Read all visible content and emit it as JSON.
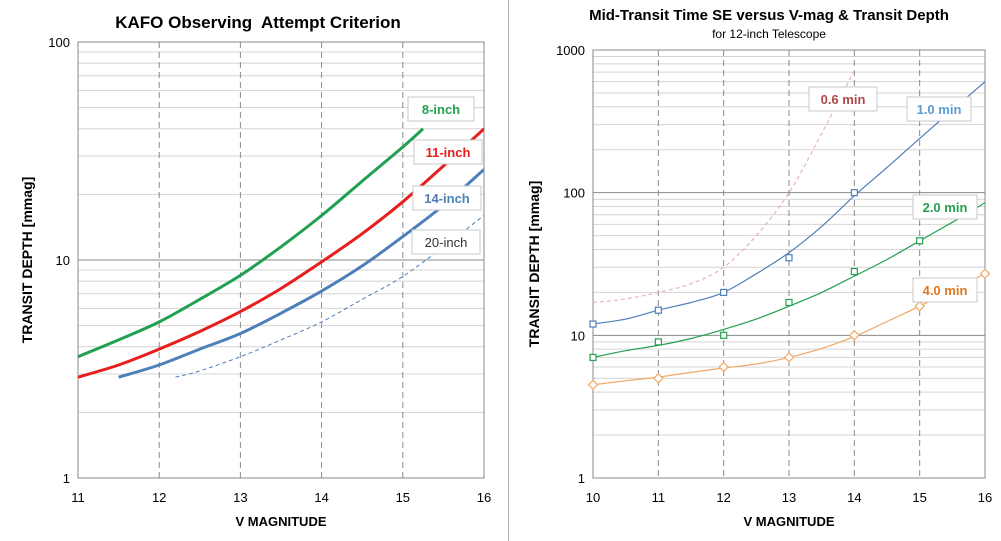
{
  "chart_data": [
    {
      "type": "line",
      "title": "KAFO Observing  Attempt Criterion",
      "subtitle": "",
      "xlabel": "V MAGNITUDE",
      "ylabel": "TRANSIT DEPTH [mmag]",
      "xlim": [
        11,
        16
      ],
      "ylim": [
        1,
        100
      ],
      "yscale": "log",
      "grid": true,
      "xticks": [
        11,
        12,
        13,
        14,
        15,
        16
      ],
      "yticks": [
        1,
        10,
        100
      ],
      "series": [
        {
          "name": "8-inch",
          "color": "#22a052",
          "style": "solid",
          "label_color": "#22a052",
          "x": [
            11.0,
            11.5,
            12.0,
            12.5,
            13.0,
            13.5,
            14.0,
            14.5,
            15.0,
            15.25
          ],
          "y": [
            3.6,
            4.3,
            5.2,
            6.6,
            8.5,
            11.5,
            16.0,
            23.0,
            33.0,
            40.0
          ]
        },
        {
          "name": "11-inch",
          "color": "#e81e1e",
          "style": "solid",
          "label_color": "#e81e1e",
          "x": [
            11.0,
            11.5,
            12.0,
            12.5,
            13.0,
            13.5,
            14.0,
            14.5,
            15.0,
            15.5,
            16.0
          ],
          "y": [
            2.9,
            3.3,
            3.9,
            4.7,
            5.8,
            7.4,
            9.8,
            13.2,
            18.5,
            27.0,
            40.0
          ]
        },
        {
          "name": "14-inch",
          "color": "#4f7fb9",
          "style": "solid",
          "label_color": "#4f7fb9",
          "x": [
            11.5,
            12.0,
            12.5,
            13.0,
            13.5,
            14.0,
            14.5,
            15.0,
            15.5,
            16.0
          ],
          "y": [
            2.9,
            3.3,
            3.9,
            4.6,
            5.7,
            7.2,
            9.4,
            12.8,
            17.8,
            26.0
          ]
        },
        {
          "name": "20-inch",
          "color": "#4f7fb9",
          "style": "dashed",
          "label_color": "#333333",
          "x": [
            12.2,
            12.5,
            13.0,
            13.5,
            14.0,
            14.5,
            15.0,
            15.5,
            16.0
          ],
          "y": [
            2.9,
            3.1,
            3.6,
            4.3,
            5.2,
            6.6,
            8.4,
            11.5,
            16.0
          ]
        }
      ]
    },
    {
      "type": "line",
      "title": "Mid-Transit Time SE versus V-mag & Transit Depth",
      "subtitle": "for 12-inch Telescope",
      "xlabel": "V MAGNITUDE",
      "ylabel": "TRANSIT DEPTH [mmag]",
      "xlim": [
        10,
        16
      ],
      "ylim": [
        1,
        1000
      ],
      "yscale": "log",
      "grid": true,
      "xticks": [
        10,
        11,
        12,
        13,
        14,
        15,
        16
      ],
      "yticks": [
        1,
        10,
        100,
        1000
      ],
      "series": [
        {
          "name": "0.6 min",
          "color": "#e8b4b8",
          "style": "dashed",
          "marker": "none",
          "label_color": "#b04848",
          "x": [
            10,
            10.5,
            11,
            11.5,
            12,
            12.5,
            13,
            13.5,
            14.0
          ],
          "y": [
            17,
            18,
            20,
            23,
            30,
            50,
            100,
            260,
            720
          ],
          "points_x": [],
          "points_y": []
        },
        {
          "name": "1.0 min",
          "color": "#4f7fb9",
          "style": "solid",
          "marker": "square",
          "label_color": "#5b9bd5",
          "x": [
            10,
            10.5,
            11,
            11.5,
            12,
            12.5,
            13,
            13.5,
            14,
            14.5,
            15,
            15.5,
            16
          ],
          "y": [
            12,
            13,
            15,
            17,
            20,
            27,
            38,
            58,
            95,
            150,
            240,
            380,
            600
          ],
          "points_x": [
            10,
            11,
            12,
            13,
            14
          ],
          "points_y": [
            12,
            15,
            20,
            35,
            100
          ]
        },
        {
          "name": "2.0 min",
          "color": "#22a052",
          "style": "solid",
          "marker": "square",
          "label_color": "#22a052",
          "x": [
            10,
            10.5,
            11,
            11.5,
            12,
            12.5,
            13,
            13.5,
            14,
            14.5,
            15,
            15.5,
            16
          ],
          "y": [
            7,
            7.8,
            8.5,
            9.5,
            11,
            13,
            16,
            20,
            26,
            34,
            46,
            62,
            85
          ],
          "points_x": [
            10,
            11,
            12,
            13,
            14,
            15
          ],
          "points_y": [
            7,
            9,
            10,
            17,
            28,
            46
          ]
        },
        {
          "name": "4.0 min",
          "color": "#f0a868",
          "style": "solid",
          "marker": "diamond",
          "label_color": "#e07820",
          "x": [
            10,
            10.5,
            11,
            11.5,
            12,
            12.5,
            13,
            13.5,
            14,
            14.5,
            15,
            15.5,
            16
          ],
          "y": [
            4.5,
            4.8,
            5.1,
            5.5,
            5.9,
            6.3,
            7.0,
            8.1,
            9.8,
            12.5,
            16,
            21,
            27
          ],
          "points_x": [
            10,
            11,
            12,
            13,
            14,
            15,
            16
          ],
          "points_y": [
            4.5,
            5,
            6,
            7,
            10,
            16,
            27
          ]
        }
      ]
    }
  ]
}
